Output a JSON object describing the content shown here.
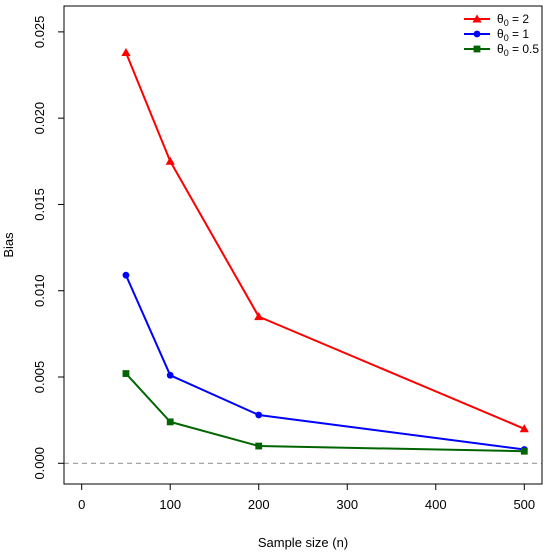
{
  "chart_data": {
    "type": "line",
    "title": "",
    "xlabel": "Sample size (n)",
    "ylabel": "Bias",
    "xlim": [
      -20,
      520
    ],
    "ylim": [
      -0.0012,
      0.0265
    ],
    "x_ticks": [
      0,
      100,
      200,
      300,
      400,
      500
    ],
    "y_ticks": [
      0.0,
      0.005,
      0.01,
      0.015,
      0.02,
      0.025
    ],
    "x_tick_labels": [
      "0",
      "100",
      "200",
      "300",
      "400",
      "500"
    ],
    "y_tick_labels": [
      "0.000",
      "0.005",
      "0.010",
      "0.015",
      "0.020",
      "0.025"
    ],
    "grid": false,
    "reference_line": {
      "y": 0,
      "style": "dashed",
      "color": "#999999"
    },
    "legend_position": "top-right",
    "x": [
      50,
      100,
      200,
      500
    ],
    "series": [
      {
        "name_base": "θ",
        "name_sub": "0",
        "name_rest": " = 2",
        "color": "#ff0000",
        "marker": "triangle",
        "values": [
          0.0238,
          0.0175,
          0.0085,
          0.002
        ]
      },
      {
        "name_base": "θ",
        "name_sub": "0",
        "name_rest": " = 1",
        "color": "#0000ff",
        "marker": "circle",
        "values": [
          0.0109,
          0.0051,
          0.0028,
          0.0008
        ]
      },
      {
        "name_base": "θ",
        "name_sub": "0",
        "name_rest": " = 0.5",
        "color": "#006400",
        "marker": "square",
        "values": [
          0.0052,
          0.0024,
          0.001,
          0.0007
        ]
      }
    ]
  }
}
